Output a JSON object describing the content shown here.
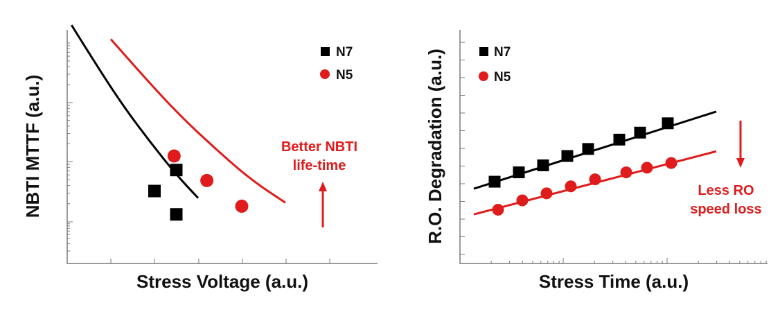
{
  "colors": {
    "n7": "#000000",
    "n5": "#e01b1b",
    "axis": "#7a7a7a",
    "annotation": "#e01b1b"
  },
  "chart_data": [
    {
      "type": "scatter",
      "title": "",
      "xlabel": "Stress Voltage (a.u.)",
      "ylabel": "NBTI MTTF (a.u.)",
      "yscale": "log",
      "xlim": [
        0,
        4
      ],
      "ylim": [
        0,
        10
      ],
      "grid": false,
      "legend_position": "top-right",
      "series": [
        {
          "name": "N7",
          "marker": "square",
          "color": "#000000",
          "points": [
            [
              2.5,
              4.0
            ],
            [
              2.0,
              3.1
            ],
            [
              2.5,
              2.1
            ]
          ],
          "fit": [
            [
              0.1,
              10.2
            ],
            [
              0.7,
              8.4
            ],
            [
              1.3,
              6.7
            ],
            [
              1.9,
              5.2
            ],
            [
              2.5,
              3.8
            ],
            [
              3.0,
              2.8
            ]
          ]
        },
        {
          "name": "N5",
          "marker": "circle",
          "color": "#e01b1b",
          "points": [
            [
              2.45,
              4.6
            ],
            [
              3.2,
              3.55
            ],
            [
              4.0,
              2.45
            ]
          ],
          "fit": [
            [
              1.0,
              9.6
            ],
            [
              1.8,
              7.9
            ],
            [
              2.6,
              6.3
            ],
            [
              3.4,
              4.9
            ],
            [
              4.2,
              3.6
            ],
            [
              5.0,
              2.6
            ]
          ]
        }
      ],
      "annotations": [
        {
          "text_lines": [
            "Better NBTI",
            "life-time"
          ],
          "arrow": "up"
        }
      ]
    },
    {
      "type": "scatter",
      "title": "",
      "xlabel": "Stress Time (a.u.)",
      "ylabel": "R.O. Degradation (a.u.)",
      "xscale": "log",
      "xlim": [
        0,
        5
      ],
      "ylim": [
        0,
        10
      ],
      "grid": false,
      "legend_position": "top-left",
      "series": [
        {
          "name": "N7",
          "marker": "square",
          "color": "#000000",
          "points": [
            [
              0.5,
              3.5
            ],
            [
              0.85,
              3.9
            ],
            [
              1.2,
              4.2
            ],
            [
              1.55,
              4.6
            ],
            [
              1.85,
              4.9
            ],
            [
              2.3,
              5.3
            ],
            [
              2.6,
              5.6
            ],
            [
              3.0,
              6.0
            ]
          ],
          "fit": [
            [
              0.2,
              3.2
            ],
            [
              3.7,
              6.5
            ]
          ]
        },
        {
          "name": "N5",
          "marker": "circle",
          "color": "#e01b1b",
          "points": [
            [
              0.55,
              2.3
            ],
            [
              0.9,
              2.7
            ],
            [
              1.25,
              3.0
            ],
            [
              1.6,
              3.3
            ],
            [
              1.95,
              3.6
            ],
            [
              2.4,
              3.9
            ],
            [
              2.7,
              4.1
            ],
            [
              3.05,
              4.3
            ]
          ],
          "fit": [
            [
              0.2,
              2.1
            ],
            [
              3.7,
              4.8
            ]
          ]
        }
      ],
      "annotations": [
        {
          "text_lines": [
            "Less RO",
            "speed loss"
          ],
          "arrow": "down"
        }
      ]
    }
  ]
}
